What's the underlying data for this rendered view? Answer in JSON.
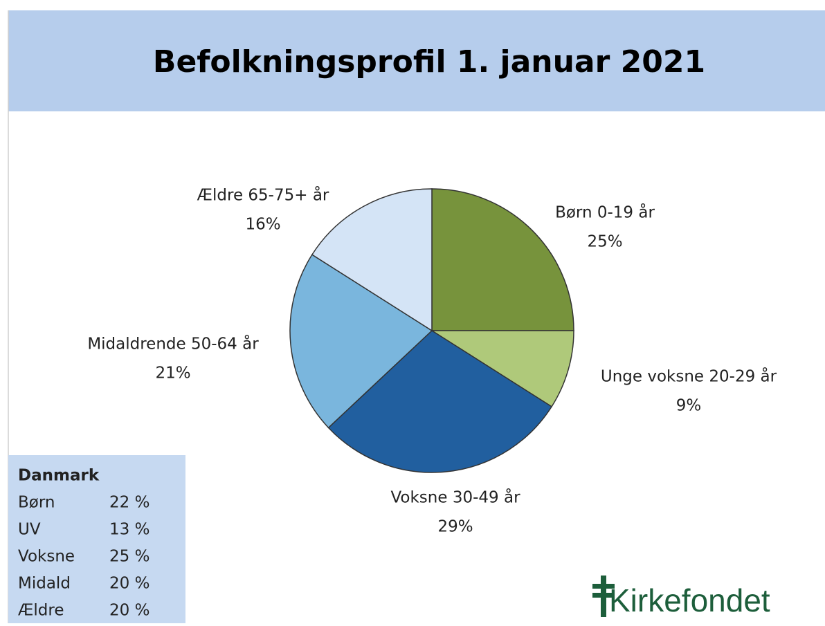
{
  "chart_data": {
    "type": "pie",
    "title": "Befolkningsprofil 1. januar 2021",
    "categories": [
      "Børn 0-19 år",
      "Unge voksne 20-29 år",
      "Voksne 30-49 år",
      "Midaldrende 50-64 år",
      "Ældre 65-75+ år"
    ],
    "values": [
      25,
      9,
      29,
      21,
      16
    ],
    "value_labels": [
      "25%",
      "9%",
      "29%",
      "21%",
      "16%"
    ],
    "colors": [
      "#77933c",
      "#afc97a",
      "#215f9f",
      "#7ab6dd",
      "#d4e4f6"
    ]
  },
  "sidebar": {
    "title": "Danmark",
    "rows": [
      [
        "Børn",
        "22 %"
      ],
      [
        "UV",
        "13 %"
      ],
      [
        "Voksne",
        "25 %"
      ],
      [
        "Midald",
        "20 %"
      ],
      [
        "Ældre",
        "20 %"
      ]
    ]
  },
  "logo": {
    "text": "Kirkefondet"
  }
}
